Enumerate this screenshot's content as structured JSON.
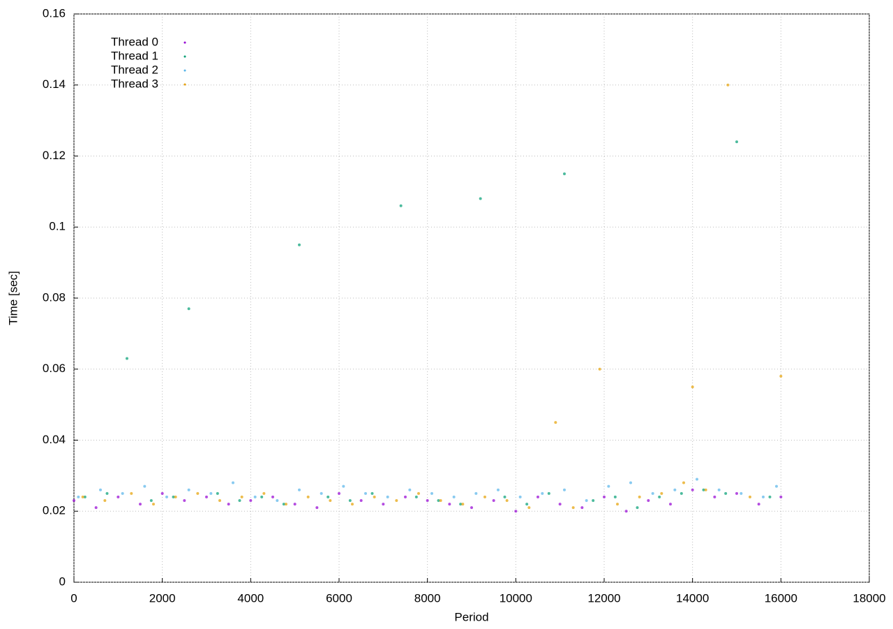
{
  "chart_data": {
    "type": "scatter",
    "x_label": "Period",
    "y_label": "Time [sec]",
    "xlim": [
      0,
      18000
    ],
    "xticks": [
      0,
      2000,
      4000,
      6000,
      8000,
      10000,
      12000,
      14000,
      16000,
      18000
    ],
    "ylim": [
      0,
      0.16
    ],
    "yticks": [
      0,
      0.02,
      0.04,
      0.06,
      0.08,
      0.1,
      0.12,
      0.14,
      0.16
    ],
    "grid": true,
    "legend": "top-left",
    "series": [
      {
        "name": "Thread 0",
        "color": "#9400d3",
        "x": [
          0,
          500,
          1000,
          1500,
          2000,
          2500,
          3000,
          3500,
          4000,
          4500,
          5000,
          5500,
          6000,
          6500,
          7000,
          7500,
          8000,
          8500,
          9000,
          9500,
          10000,
          10500,
          11000,
          11500,
          12000,
          12500,
          13000,
          13500,
          14000,
          14500,
          15000,
          15500,
          16000
        ],
        "values": [
          0.023,
          0.021,
          0.024,
          0.022,
          0.025,
          0.023,
          0.024,
          0.022,
          0.023,
          0.024,
          0.022,
          0.021,
          0.025,
          0.023,
          0.022,
          0.024,
          0.023,
          0.022,
          0.021,
          0.023,
          0.02,
          0.024,
          0.022,
          0.021,
          0.024,
          0.02,
          0.023,
          0.022,
          0.026,
          0.024,
          0.025,
          0.022,
          0.024
        ]
      },
      {
        "name": "Thread 1",
        "color": "#009e73",
        "x": [
          250,
          750,
          1200,
          1750,
          2250,
          2600,
          3250,
          3750,
          4250,
          4750,
          5100,
          5750,
          6250,
          6750,
          7400,
          7750,
          8250,
          8750,
          9200,
          9750,
          10250,
          10750,
          11100,
          11750,
          12250,
          12750,
          13250,
          13750,
          14250,
          14750,
          15000,
          15750
        ],
        "values": [
          0.024,
          0.025,
          0.063,
          0.023,
          0.024,
          0.077,
          0.025,
          0.023,
          0.024,
          0.022,
          0.095,
          0.024,
          0.023,
          0.025,
          0.106,
          0.024,
          0.023,
          0.022,
          0.108,
          0.024,
          0.022,
          0.025,
          0.115,
          0.023,
          0.024,
          0.021,
          0.024,
          0.025,
          0.026,
          0.025,
          0.124,
          0.024
        ]
      },
      {
        "name": "Thread 2",
        "color": "#56b4e9",
        "x": [
          100,
          600,
          1100,
          1600,
          2100,
          2600,
          3100,
          3600,
          4100,
          4600,
          5100,
          5600,
          6100,
          6600,
          7100,
          7600,
          8100,
          8600,
          9100,
          9600,
          10100,
          10600,
          11100,
          11600,
          12100,
          12600,
          13100,
          13600,
          14100,
          14600,
          15100,
          15600,
          15900
        ],
        "values": [
          0.024,
          0.026,
          0.025,
          0.027,
          0.024,
          0.026,
          0.025,
          0.028,
          0.024,
          0.023,
          0.026,
          0.025,
          0.027,
          0.025,
          0.024,
          0.026,
          0.025,
          0.024,
          0.025,
          0.026,
          0.024,
          0.025,
          0.026,
          0.023,
          0.027,
          0.028,
          0.025,
          0.026,
          0.029,
          0.026,
          0.025,
          0.024,
          0.027
        ]
      },
      {
        "name": "Thread 3",
        "color": "#e69f00",
        "x": [
          200,
          700,
          1300,
          1800,
          2300,
          2800,
          3300,
          3800,
          4300,
          4800,
          5300,
          5800,
          6300,
          6800,
          7300,
          7800,
          8300,
          8800,
          9300,
          9800,
          10300,
          10900,
          11300,
          11900,
          12300,
          12800,
          13300,
          13800,
          14000,
          14300,
          14800,
          15300,
          16000
        ],
        "values": [
          0.024,
          0.023,
          0.025,
          0.022,
          0.024,
          0.025,
          0.023,
          0.024,
          0.025,
          0.022,
          0.024,
          0.023,
          0.022,
          0.024,
          0.023,
          0.025,
          0.023,
          0.022,
          0.024,
          0.023,
          0.021,
          0.045,
          0.021,
          0.06,
          0.022,
          0.024,
          0.025,
          0.028,
          0.055,
          0.026,
          0.14,
          0.024,
          0.058
        ]
      }
    ]
  }
}
